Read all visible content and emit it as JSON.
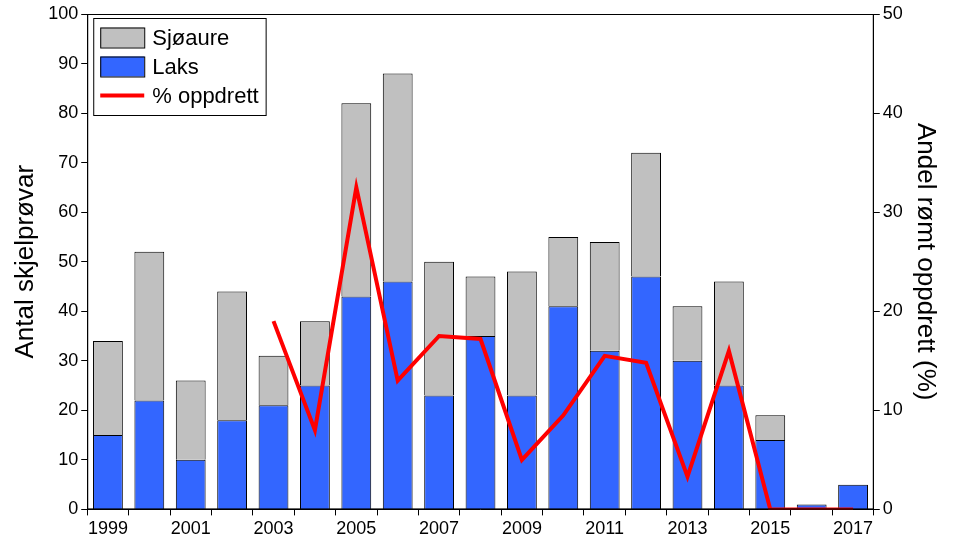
{
  "chart_data": {
    "type": "bar",
    "stacked": true,
    "categories": [
      "1999",
      null,
      "2001",
      null,
      "2003",
      null,
      "2005",
      null,
      "2007",
      null,
      "2009",
      null,
      "2011",
      null,
      "2013",
      null,
      "2015",
      null,
      "2017"
    ],
    "series": [
      {
        "name": "Laks",
        "color": "#3366ff",
        "values": [
          15,
          22,
          10,
          18,
          21,
          25,
          43,
          46,
          23,
          35,
          23,
          41,
          32,
          47,
          30,
          25,
          14,
          1,
          5
        ]
      },
      {
        "name": "Sjøaure",
        "color": "#c0c0c0",
        "values": [
          19,
          30,
          16,
          26,
          10,
          13,
          39,
          42,
          27,
          12,
          25,
          14,
          22,
          25,
          11,
          21,
          5,
          0,
          0
        ]
      },
      {
        "name": "% oppdrett",
        "type": "line",
        "color": "#ff0000",
        "axis": "y2",
        "values": [
          null,
          null,
          null,
          null,
          19,
          8,
          32.5,
          13,
          17.5,
          17.2,
          5,
          9.5,
          15.5,
          14.8,
          3.3,
          16,
          0,
          0,
          0
        ]
      }
    ],
    "y_label": "Antal skjelprøvar",
    "y2_label": "Andel rømt oppdrett (%)",
    "ylim": [
      0,
      100
    ],
    "yticks": [
      0,
      10,
      20,
      30,
      40,
      50,
      60,
      70,
      80,
      90,
      100
    ],
    "y2lim": [
      0,
      50
    ],
    "y2ticks": [
      0,
      10,
      20,
      30,
      40,
      50
    ],
    "grid": false,
    "legend": "upper left"
  }
}
